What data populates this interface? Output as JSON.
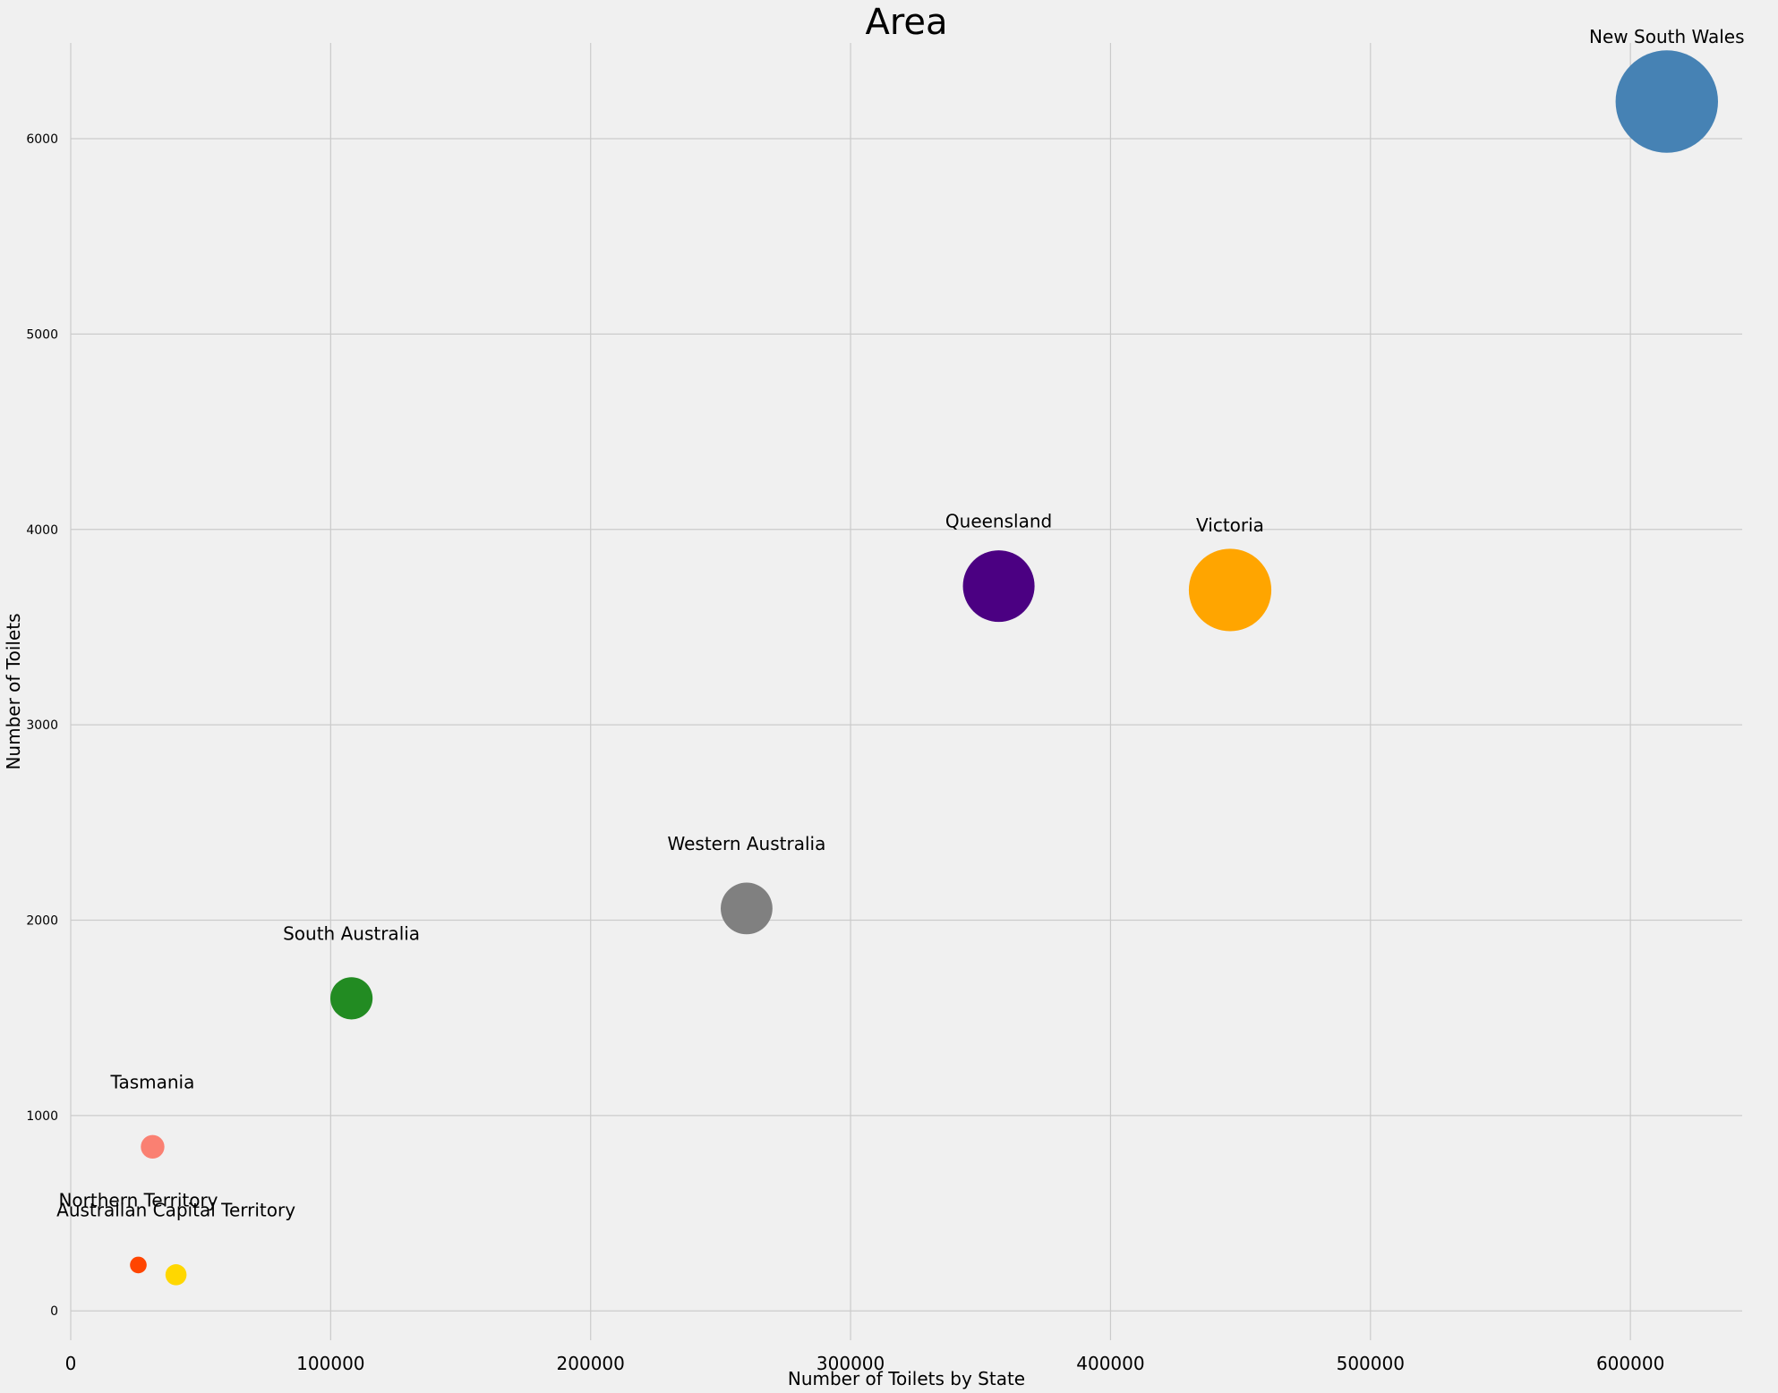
{
  "chart_data": {
    "type": "scatter",
    "title": "Area",
    "xlabel": "Number of Toilets by State",
    "ylabel": "Number of Toilets",
    "xlim": [
      0,
      643000
    ],
    "ylim": [
      -150,
      6490
    ],
    "xticks": [
      0,
      100000,
      200000,
      300000,
      400000,
      500000,
      600000
    ],
    "yticks": [
      0,
      1000,
      2000,
      3000,
      4000,
      5000,
      6000
    ],
    "grid": true,
    "marker": "bubble",
    "points": [
      {
        "label": "New South Wales",
        "x": 614000,
        "y": 6190,
        "size": 9400,
        "color": "#4682b4"
      },
      {
        "label": "Victoria",
        "x": 446000,
        "y": 3690,
        "size": 6100,
        "color": "#ffa500"
      },
      {
        "label": "Queensland",
        "x": 357000,
        "y": 3710,
        "size": 4600,
        "color": "#4b0082"
      },
      {
        "label": "Western Australia",
        "x": 260000,
        "y": 2060,
        "size": 2400,
        "color": "#808080"
      },
      {
        "label": "South Australia",
        "x": 108000,
        "y": 1600,
        "size": 1600,
        "color": "#228b22"
      },
      {
        "label": "Tasmania",
        "x": 31500,
        "y": 840,
        "size": 500,
        "color": "#fa8072"
      },
      {
        "label": "Northern Territory",
        "x": 26000,
        "y": 235,
        "size": 250,
        "color": "#ff4500"
      },
      {
        "label": "Australian Capital Territory",
        "x": 40500,
        "y": 185,
        "size": 400,
        "color": "#ffd700"
      }
    ]
  }
}
